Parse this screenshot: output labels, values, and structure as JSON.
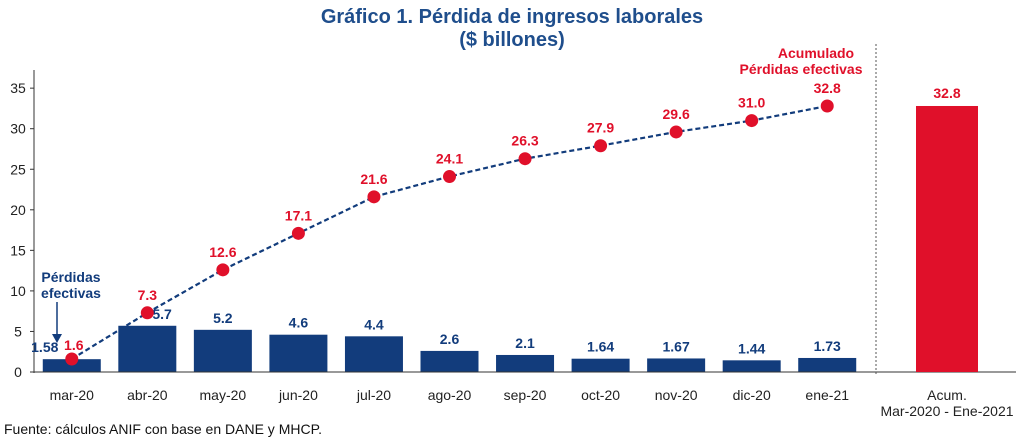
{
  "chart_data": {
    "type": "bar",
    "title": "Gráfico 1. Pérdida de ingresos laborales",
    "subtitle": "($ billones)",
    "categories": [
      "mar-20",
      "abr-20",
      "may-20",
      "jun-20",
      "jul-20",
      "ago-20",
      "sep-20",
      "oct-20",
      "nov-20",
      "dic-20",
      "ene-21"
    ],
    "series": [
      {
        "name": "Pérdidas efectivas",
        "type": "bar",
        "values": [
          1.58,
          5.7,
          5.2,
          4.6,
          4.4,
          2.6,
          2.1,
          1.64,
          1.67,
          1.44,
          1.73
        ],
        "labels": [
          "1.58",
          "5.7",
          "5.2",
          "4.6",
          "4.4",
          "2.6",
          "2.1",
          "1.64",
          "1.67",
          "1.44",
          "1.73"
        ]
      },
      {
        "name": "Acumulado Pérdidas efectivas",
        "type": "line",
        "values": [
          1.6,
          7.3,
          12.6,
          17.1,
          21.6,
          24.1,
          26.3,
          27.9,
          29.6,
          31.0,
          32.8
        ],
        "labels": [
          "1.6",
          "7.3",
          "12.6",
          "17.1",
          "21.6",
          "24.1",
          "26.3",
          "27.9",
          "29.6",
          "31.0",
          "32.8"
        ]
      }
    ],
    "summary_bar": {
      "category_lines": [
        "Acum.",
        "Mar-2020 - Ene-2021"
      ],
      "value": 32.8,
      "label": "32.8"
    },
    "annotations": {
      "bars_note": [
        "Pérdidas",
        "efectivas"
      ],
      "cumulative_note": [
        "Acumulado",
        "Pérdidas efectivas"
      ]
    },
    "yticks": [
      "0",
      "5",
      "10",
      "15",
      "20",
      "25",
      "30",
      "35"
    ],
    "ylim": [
      0,
      37.5
    ],
    "grid": false
  },
  "colors": {
    "bar": "#123c7c",
    "cumulative": "#e0102a",
    "title": "#1f4e8c"
  },
  "source": "Fuente: cálculos ANIF con base en DANE y MHCP."
}
